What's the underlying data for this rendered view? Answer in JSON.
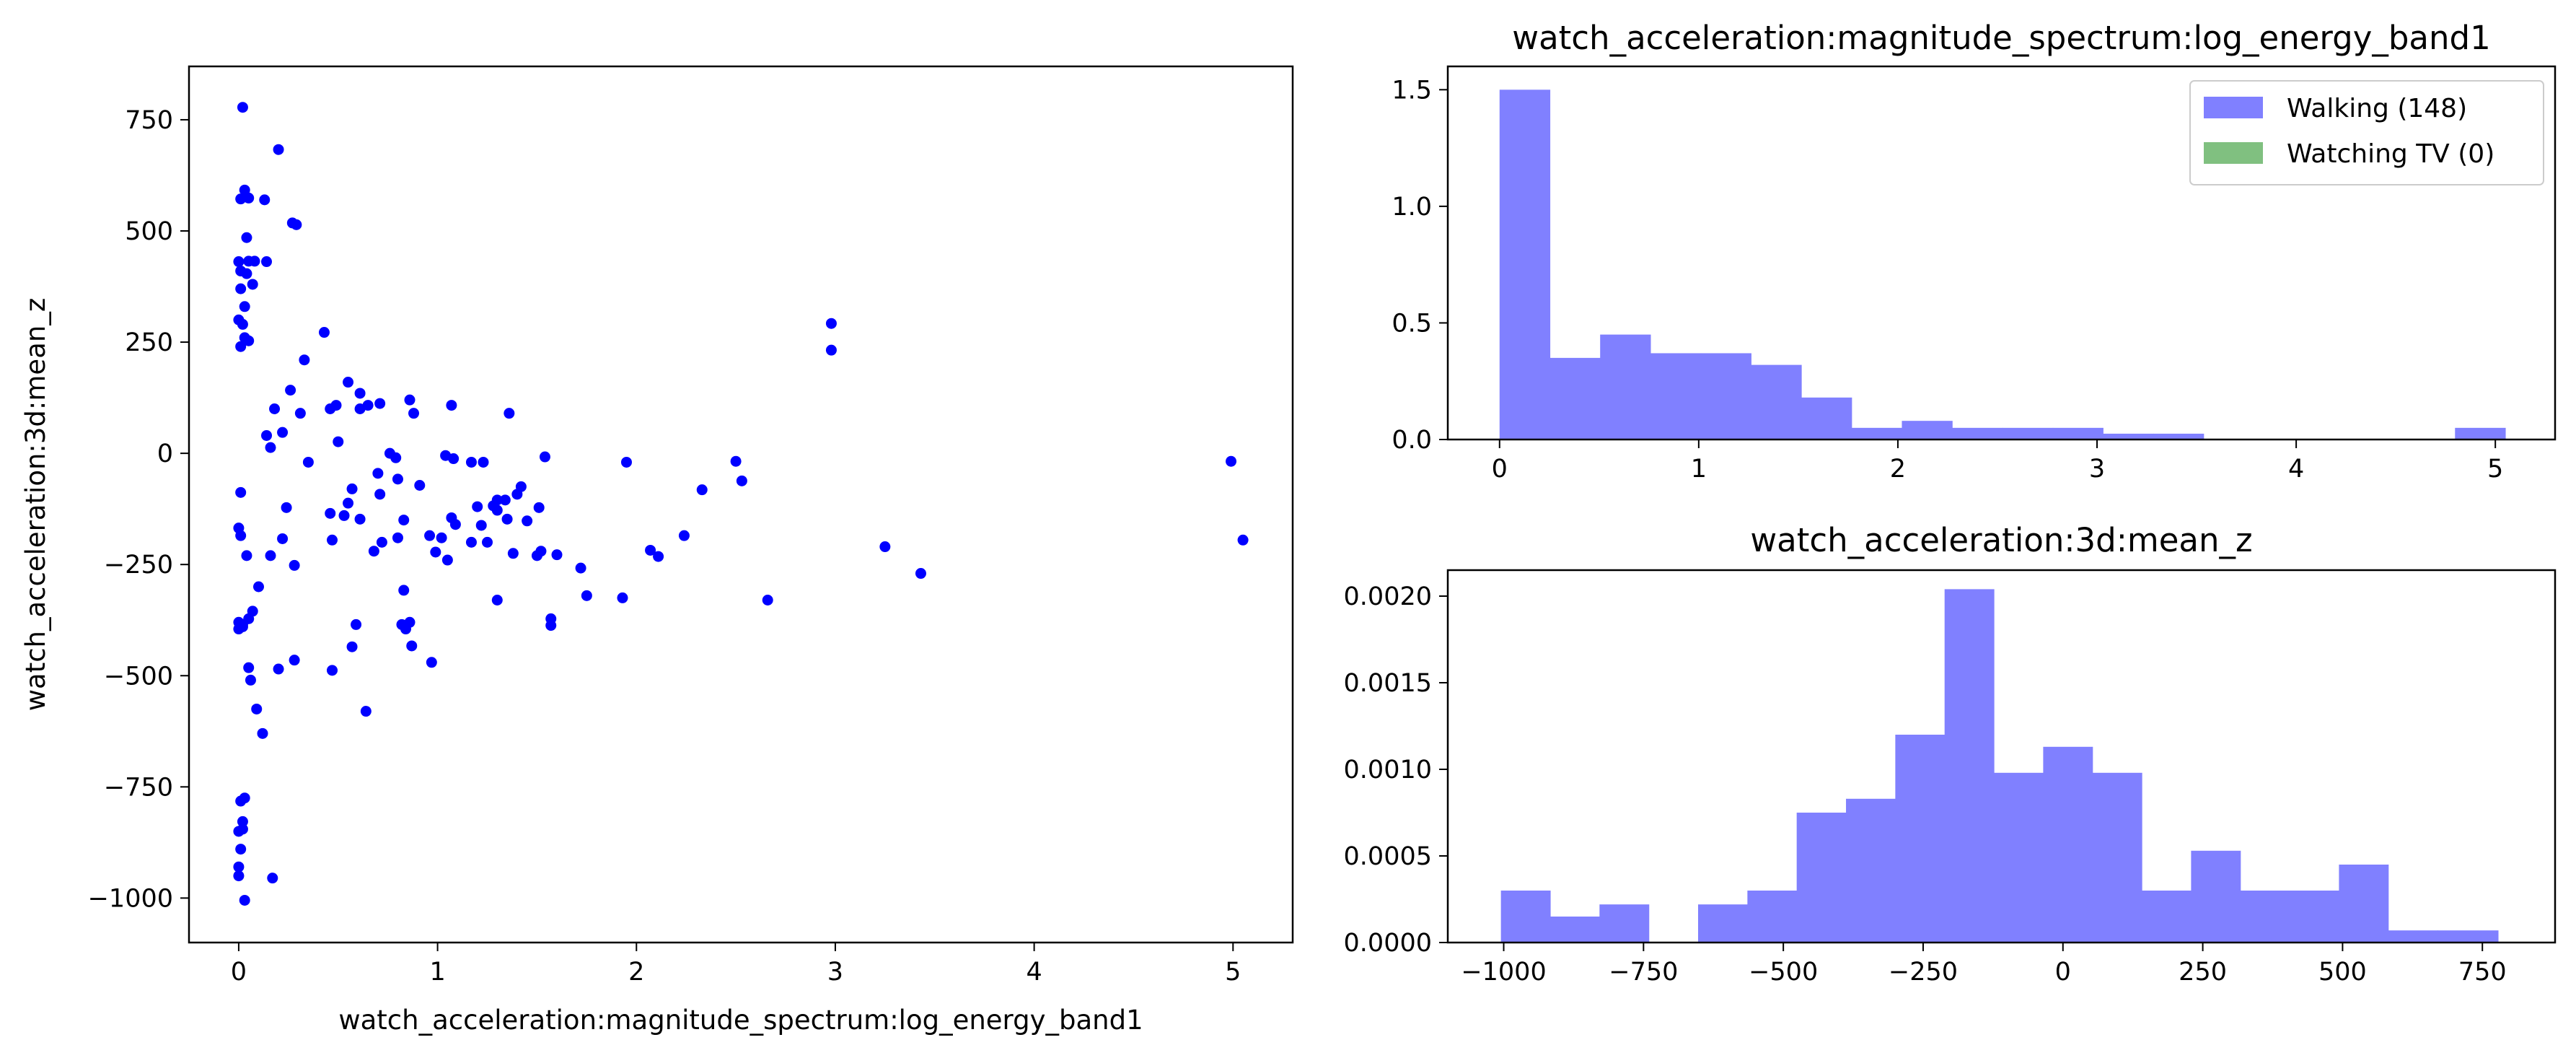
{
  "chart_data": [
    {
      "type": "scatter",
      "xlabel": "watch_acceleration:magnitude_spectrum:log_energy_band1",
      "ylabel": "watch_acceleration:3d:mean_z",
      "xlim": [
        -0.25,
        5.3
      ],
      "ylim": [
        -1100,
        870
      ],
      "xticks": [
        0,
        1,
        2,
        3,
        4,
        5
      ],
      "xtick_labels": [
        "0",
        "1",
        "2",
        "3",
        "4",
        "5"
      ],
      "yticks": [
        -1000,
        -750,
        -500,
        -250,
        0,
        250,
        500,
        750
      ],
      "ytick_labels": [
        "−1000",
        "−750",
        "−500",
        "−250",
        "0",
        "250",
        "500",
        "750"
      ],
      "color": "#0000ff",
      "points": [
        [
          0.02,
          778
        ],
        [
          0.01,
          572
        ],
        [
          0.05,
          574
        ],
        [
          0.03,
          592
        ],
        [
          0.13,
          570
        ],
        [
          0.2,
          683
        ],
        [
          0.27,
          518
        ],
        [
          0.29,
          514
        ],
        [
          0.0,
          431
        ],
        [
          0.01,
          410
        ],
        [
          0.04,
          404
        ],
        [
          0.05,
          432
        ],
        [
          0.08,
          432
        ],
        [
          0.14,
          431
        ],
        [
          0.04,
          485
        ],
        [
          0.07,
          380
        ],
        [
          0.01,
          370
        ],
        [
          0.03,
          330
        ],
        [
          0.0,
          300
        ],
        [
          0.02,
          290
        ],
        [
          0.03,
          260
        ],
        [
          0.01,
          240
        ],
        [
          0.05,
          253
        ],
        [
          2.98,
          292
        ],
        [
          2.98,
          232
        ],
        [
          0.33,
          210
        ],
        [
          0.43,
          272
        ],
        [
          0.55,
          160
        ],
        [
          0.61,
          135
        ],
        [
          0.65,
          108
        ],
        [
          0.71,
          112
        ],
        [
          0.86,
          120
        ],
        [
          0.88,
          90
        ],
        [
          1.07,
          108
        ],
        [
          0.26,
          142
        ],
        [
          0.18,
          100
        ],
        [
          0.22,
          47
        ],
        [
          0.31,
          90
        ],
        [
          0.46,
          100
        ],
        [
          0.49,
          108
        ],
        [
          0.61,
          100
        ],
        [
          1.36,
          90
        ],
        [
          0.14,
          40
        ],
        [
          0.16,
          13
        ],
        [
          0.5,
          26
        ],
        [
          0.35,
          -20
        ],
        [
          0.76,
          0
        ],
        [
          0.79,
          -10
        ],
        [
          1.04,
          -5
        ],
        [
          1.08,
          -12
        ],
        [
          1.17,
          -20
        ],
        [
          1.23,
          -20
        ],
        [
          1.54,
          -8
        ],
        [
          1.95,
          -20
        ],
        [
          2.5,
          -18
        ],
        [
          4.99,
          -18
        ],
        [
          0.7,
          -45
        ],
        [
          0.8,
          -58
        ],
        [
          0.91,
          -72
        ],
        [
          0.71,
          -92
        ],
        [
          0.57,
          -80
        ],
        [
          1.42,
          -75
        ],
        [
          1.4,
          -92
        ],
        [
          1.34,
          -105
        ],
        [
          1.3,
          -105
        ],
        [
          1.28,
          -118
        ],
        [
          1.2,
          -120
        ],
        [
          2.53,
          -62
        ],
        [
          2.33,
          -82
        ],
        [
          0.01,
          -88
        ],
        [
          0.0,
          -168
        ],
        [
          0.01,
          -185
        ],
        [
          0.04,
          -230
        ],
        [
          0.16,
          -230
        ],
        [
          0.22,
          -192
        ],
        [
          0.24,
          -122
        ],
        [
          0.28,
          -252
        ],
        [
          0.46,
          -135
        ],
        [
          0.47,
          -195
        ],
        [
          0.53,
          -140
        ],
        [
          0.55,
          -112
        ],
        [
          0.61,
          -148
        ],
        [
          0.68,
          -220
        ],
        [
          0.72,
          -200
        ],
        [
          0.8,
          -190
        ],
        [
          0.83,
          -150
        ],
        [
          0.96,
          -185
        ],
        [
          0.99,
          -222
        ],
        [
          1.02,
          -190
        ],
        [
          1.05,
          -240
        ],
        [
          1.07,
          -145
        ],
        [
          1.09,
          -160
        ],
        [
          1.22,
          -162
        ],
        [
          1.3,
          -128
        ],
        [
          1.35,
          -148
        ],
        [
          1.45,
          -152
        ],
        [
          1.51,
          -122
        ],
        [
          1.38,
          -225
        ],
        [
          1.17,
          -200
        ],
        [
          1.25,
          -200
        ],
        [
          1.5,
          -230
        ],
        [
          1.52,
          -220
        ],
        [
          1.6,
          -228
        ],
        [
          5.05,
          -195
        ],
        [
          3.25,
          -210
        ],
        [
          2.07,
          -218
        ],
        [
          2.11,
          -232
        ],
        [
          2.24,
          -185
        ],
        [
          1.72,
          -258
        ],
        [
          3.43,
          -270
        ],
        [
          0.1,
          -300
        ],
        [
          0.83,
          -308
        ],
        [
          1.57,
          -372
        ],
        [
          1.57,
          -387
        ],
        [
          1.75,
          -320
        ],
        [
          1.3,
          -330
        ],
        [
          1.93,
          -325
        ],
        [
          2.66,
          -330
        ],
        [
          0.07,
          -355
        ],
        [
          0.05,
          -372
        ],
        [
          0.02,
          -390
        ],
        [
          0.02,
          -385
        ],
        [
          0.0,
          -395
        ],
        [
          0.0,
          -380
        ],
        [
          0.59,
          -385
        ],
        [
          0.82,
          -385
        ],
        [
          0.84,
          -395
        ],
        [
          0.86,
          -380
        ],
        [
          0.57,
          -435
        ],
        [
          0.87,
          -433
        ],
        [
          0.47,
          -488
        ],
        [
          0.05,
          -482
        ],
        [
          0.06,
          -510
        ],
        [
          0.09,
          -575
        ],
        [
          0.12,
          -630
        ],
        [
          0.2,
          -485
        ],
        [
          0.28,
          -465
        ],
        [
          0.97,
          -470
        ],
        [
          0.64,
          -580
        ],
        [
          0.01,
          -782
        ],
        [
          0.03,
          -775
        ],
        [
          0.02,
          -828
        ],
        [
          0.0,
          -850
        ],
        [
          0.02,
          -845
        ],
        [
          0.01,
          -890
        ],
        [
          0.0,
          -930
        ],
        [
          0.0,
          -950
        ],
        [
          0.03,
          -1005
        ],
        [
          0.17,
          -955
        ]
      ]
    },
    {
      "type": "bar",
      "title": "watch_acceleration:magnitude_spectrum:log_energy_band1",
      "xlim": [
        -0.26,
        5.3
      ],
      "ylim": [
        0,
        1.6
      ],
      "xticks": [
        0,
        1,
        2,
        3,
        4,
        5
      ],
      "xtick_labels": [
        "0",
        "1",
        "2",
        "3",
        "4",
        "5"
      ],
      "yticks": [
        0.0,
        0.5,
        1.0,
        1.5
      ],
      "ytick_labels": [
        "0.0",
        "0.5",
        "1.0",
        "1.5"
      ],
      "bin_edges": [
        0.0,
        0.2525,
        0.505,
        0.7575,
        1.01,
        1.2625,
        1.515,
        1.7675,
        2.02,
        2.2725,
        2.525,
        2.7775,
        3.03,
        3.2825,
        3.535,
        3.7875,
        4.04,
        4.2925,
        4.545,
        4.7975,
        5.05
      ],
      "series": [
        {
          "name": "Walking (148)",
          "color": "#8080ff",
          "values": [
            1.5,
            0.35,
            0.45,
            0.37,
            0.37,
            0.32,
            0.18,
            0.05,
            0.08,
            0.05,
            0.05,
            0.05,
            0.025,
            0.025,
            0,
            0,
            0,
            0,
            0,
            0.05
          ]
        },
        {
          "name": "Watching TV (0)",
          "color": "#80c080",
          "values": []
        }
      ],
      "legend": "top-right"
    },
    {
      "type": "bar",
      "title": "watch_acceleration:3d:mean_z",
      "xlim": [
        -1100,
        880
      ],
      "ylim": [
        0,
        0.00215
      ],
      "xticks": [
        -1000,
        -750,
        -500,
        -250,
        0,
        250,
        500,
        750
      ],
      "xtick_labels": [
        "−1000",
        "−750",
        "−500",
        "−250",
        "0",
        "250",
        "500",
        "750"
      ],
      "yticks": [
        0.0,
        0.0005,
        0.001,
        0.0015,
        0.002
      ],
      "ytick_labels": [
        "0.0000",
        "0.0005",
        "0.0010",
        "0.0015",
        "0.0020"
      ],
      "bin_edges": [
        -1005,
        -916.85,
        -828.7,
        -740.55,
        -652.4,
        -564.25,
        -476.1,
        -387.95,
        -299.8,
        -211.65,
        -123.5,
        -35.35,
        52.8,
        140.95,
        229.1,
        317.25,
        405.4,
        493.55,
        581.7,
        669.85,
        778
      ],
      "series": [
        {
          "name": "Walking",
          "color": "#8080ff",
          "values": [
            0.0003,
            0.00015,
            0.00022,
            0,
            0.00022,
            0.0003,
            0.00075,
            0.00083,
            0.0012,
            0.00204,
            0.00098,
            0.00113,
            0.00098,
            0.0003,
            0.00053,
            0.0003,
            0.0003,
            0.00045,
            7e-05,
            7e-05
          ]
        }
      ]
    }
  ]
}
